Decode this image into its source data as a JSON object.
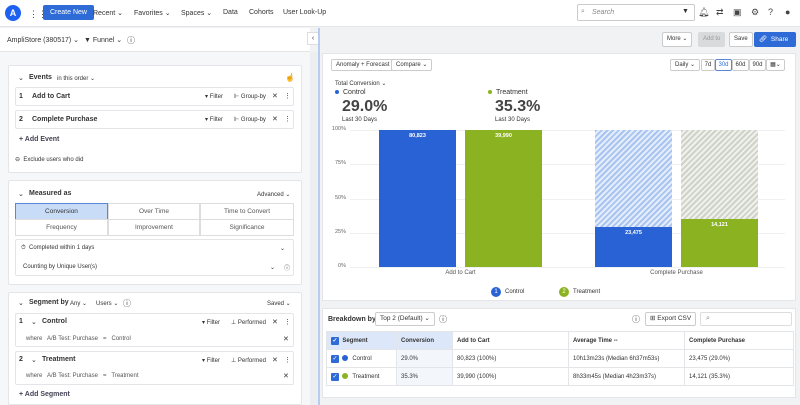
{
  "nav": {
    "create": "Create New",
    "items": [
      "Recent ⌄",
      "Favorites ⌄",
      "Spaces ⌄",
      "Data",
      "Cohorts",
      "User Look-Up"
    ],
    "search_placeholder": "Search"
  },
  "left": {
    "project": "AmpliStore (380517) ⌄",
    "chart_type": "Funnel ⌄",
    "events": {
      "title": "Events",
      "order": "in this order ⌄",
      "items": [
        {
          "n": "1",
          "name": "Add to Cart"
        },
        {
          "n": "2",
          "name": "Complete Purchase"
        }
      ],
      "filter": "Filter",
      "groupby": "Group-by",
      "add": "+ Add Event",
      "exclude": "Exclude users who did"
    },
    "measured": {
      "title": "Measured as",
      "advanced": "Advanced ⌄",
      "tabs": [
        "Conversion",
        "Over Time",
        "Time to Convert",
        "Frequency",
        "Improvement",
        "Significance"
      ],
      "selected": "Conversion",
      "completed": "Completed within 1 days",
      "counting": "Counting by Unique User(s)"
    },
    "segment": {
      "title": "Segment by",
      "any": "Any ⌄",
      "users": "Users ⌄",
      "saved": "Saved ⌄",
      "filter": "Filter",
      "performed": "Performed",
      "items": [
        {
          "n": "1",
          "name": "Control",
          "where": "where",
          "prop": "A/B Test: Purchase",
          "op": "=",
          "val": "Control"
        },
        {
          "n": "2",
          "name": "Treatment",
          "where": "where",
          "prop": "A/B Test: Purchase",
          "op": "=",
          "val": "Treatment"
        }
      ],
      "add": "+ Add Segment"
    }
  },
  "toolbar": {
    "more": "More ⌄",
    "add_to": "Add to",
    "save": "Save",
    "share": "Share"
  },
  "chart_controls": {
    "anomaly": "Anomaly + Forecast",
    "compare": "Compare ⌄",
    "interval": "Daily ⌄",
    "ranges": [
      "7d",
      "30d",
      "60d",
      "90d"
    ],
    "selected_range": "30d",
    "metric": "Total Conversion ⌄"
  },
  "summary": [
    {
      "name": "Control",
      "value": "29.0%",
      "period": "Last 30 Days",
      "color": "#2962d4"
    },
    {
      "name": "Treatment",
      "value": "35.3%",
      "period": "Last 30 Days",
      "color": "#8bb321"
    }
  ],
  "chart_data": {
    "type": "bar",
    "categories": [
      "Add to Cart",
      "Complete Purchase"
    ],
    "ylim": [
      0,
      100
    ],
    "yticks": [
      "0%",
      "25%",
      "50%",
      "75%",
      "100%"
    ],
    "grid": true,
    "legend": "bottom",
    "series": [
      {
        "name": "Control",
        "values": [
          100,
          29.0
        ],
        "labels": [
          "80,823",
          "23,475"
        ],
        "color": "#2962d4"
      },
      {
        "name": "Treatment",
        "values": [
          100,
          35.3
        ],
        "labels": [
          "39,990",
          "14,121"
        ],
        "color": "#8bb321"
      }
    ]
  },
  "legend": [
    {
      "n": "1",
      "name": "Control"
    },
    {
      "n": "2",
      "name": "Treatment"
    }
  ],
  "breakdown": {
    "label": "Breakdown by:",
    "select": "Top 2 (Default) ⌄",
    "export": "Export CSV",
    "headers": [
      "Segment",
      "Conversion",
      "Add to Cart",
      "Average Time --",
      "Complete Purchase"
    ],
    "rows": [
      [
        "Control",
        "29.0%",
        "80,823 (100%)",
        "10h13m23s (Median 6h37m53s)",
        "23,475 (29.0%)"
      ],
      [
        "Treatment",
        "35.3%",
        "39,990 (100%)",
        "8h33m45s (Median 4h23m37s)",
        "14,121 (35.3%)"
      ]
    ]
  }
}
